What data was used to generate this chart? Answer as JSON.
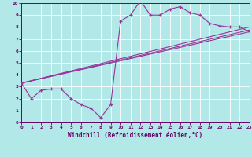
{
  "xlabel": "Windchill (Refroidissement éolien,°C)",
  "bg_color": "#b2e8e8",
  "line_color": "#993399",
  "text_color": "#660066",
  "xlim": [
    0,
    23
  ],
  "ylim": [
    0,
    10
  ],
  "xticks": [
    0,
    1,
    2,
    3,
    4,
    5,
    6,
    7,
    8,
    9,
    10,
    11,
    12,
    13,
    14,
    15,
    16,
    17,
    18,
    19,
    20,
    21,
    22,
    23
  ],
  "yticks": [
    0,
    1,
    2,
    3,
    4,
    5,
    6,
    7,
    8,
    9,
    10
  ],
  "curve1_x": [
    0,
    1,
    2,
    3,
    4,
    5,
    6,
    7,
    8,
    9,
    10,
    11,
    12,
    13,
    14,
    15,
    16,
    17,
    18,
    19,
    20,
    21,
    22,
    23
  ],
  "curve1_y": [
    3.3,
    2.0,
    2.7,
    2.8,
    2.8,
    2.0,
    1.5,
    1.2,
    0.4,
    1.5,
    8.5,
    9.0,
    10.2,
    9.0,
    9.0,
    9.5,
    9.7,
    9.2,
    9.0,
    8.3,
    8.1,
    8.0,
    8.0,
    7.6
  ],
  "line1_x": [
    0,
    23
  ],
  "line1_y": [
    3.3,
    7.6
  ],
  "line2_x": [
    0,
    23
  ],
  "line2_y": [
    3.3,
    8.0
  ],
  "line3_x": [
    0,
    23
  ],
  "line3_y": [
    3.3,
    7.75
  ]
}
